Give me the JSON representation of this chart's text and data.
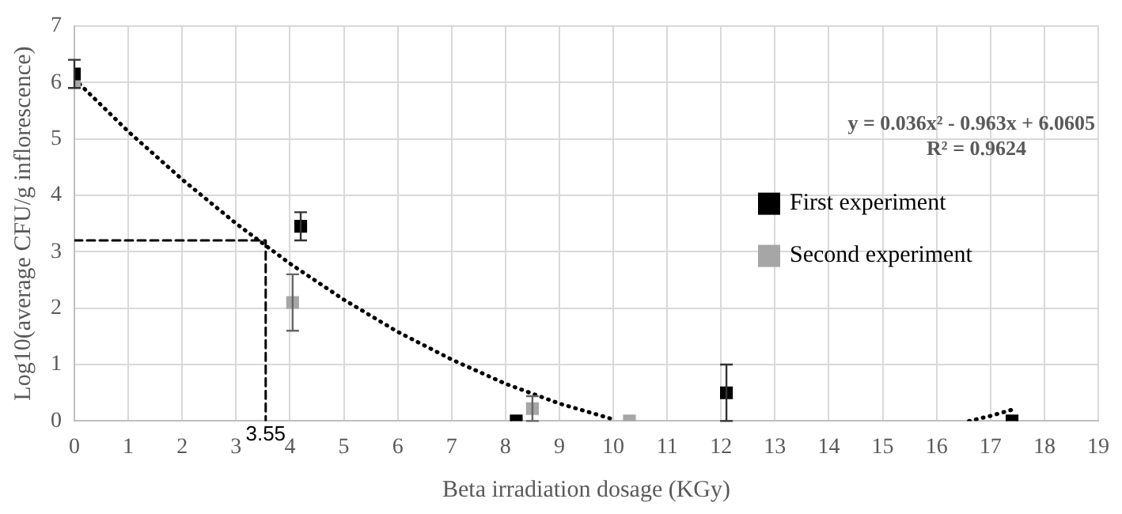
{
  "chart_data": {
    "type": "scatter",
    "xlabel": "Beta irradiation dosage (KGy)",
    "ylabel": "Log10(average CFU/g inflorescence)",
    "xlim": [
      0,
      19
    ],
    "xticks": [
      0,
      1,
      2,
      3,
      4,
      5,
      6,
      7,
      8,
      9,
      10,
      11,
      12,
      13,
      14,
      15,
      16,
      17,
      18,
      19
    ],
    "ylim": [
      0,
      7
    ],
    "yticks": [
      0,
      1,
      2,
      3,
      4,
      5,
      6,
      7
    ],
    "grid": true,
    "legend": "right",
    "marker": "square",
    "series": [
      {
        "name": "First experiment",
        "color": "#000000",
        "x": [
          0,
          4.2,
          8.2,
          12.1,
          17.4
        ],
        "values": [
          6.15,
          3.45,
          0,
          0.5,
          0
        ],
        "errors": [
          0.25,
          0.25,
          null,
          0.5,
          null
        ]
      },
      {
        "name": "Second experiment",
        "color": "#a6a6a6",
        "x": [
          0,
          4.05,
          8.5,
          10.3
        ],
        "values": [
          6.0,
          2.1,
          0.22,
          0
        ],
        "errors": [
          null,
          0.5,
          0.22,
          null
        ]
      },
      {
        "type": "line",
        "color": "#000000",
        "line_style": "dotted",
        "marker": "none",
        "x": [
          0,
          1,
          2,
          3,
          4,
          5,
          6,
          7,
          8,
          9,
          10,
          13,
          16.6,
          17,
          17.4
        ],
        "values": [
          6.06,
          5.13,
          4.28,
          3.5,
          2.79,
          2.15,
          1.58,
          1.09,
          0.66,
          0.31,
          0.03,
          null,
          0,
          0.09,
          0.2
        ]
      },
      {
        "type": "line",
        "color": "#000000",
        "line_style": "dashed",
        "marker": "none",
        "x": [
          0,
          3.55,
          3.55
        ],
        "values": [
          3.2,
          3.2,
          0
        ]
      }
    ],
    "annotations": [
      "y = 0.036x² - 0.963x + 6.0605",
      "R² = 0.9624",
      {
        "text": "3.55",
        "x": 3.55,
        "y": 0
      }
    ]
  }
}
